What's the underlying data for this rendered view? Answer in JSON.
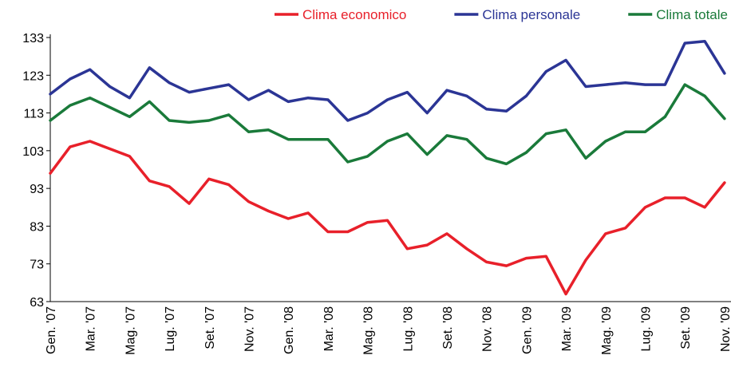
{
  "chart_data": {
    "type": "line",
    "categories": [
      "Gen. '07",
      null,
      "Mar. '07",
      null,
      "Mag. '07",
      null,
      "Lug. '07",
      null,
      "Set. '07",
      null,
      "Nov. '07",
      null,
      "Gen. '08",
      null,
      "Mar. '08",
      null,
      "Mag. '08",
      null,
      "Lug. '08",
      null,
      "Set. '08",
      null,
      "Nov. '08",
      null,
      "Gen. '09",
      null,
      "Mar. '09",
      null,
      "Mag. '09",
      null,
      "Lug. '09",
      null,
      "Set. '09",
      null,
      "Nov. '09"
    ],
    "series": [
      {
        "name": "Clima economico",
        "color": "#e8202a",
        "values": [
          97,
          104,
          105.5,
          103.5,
          101.5,
          95,
          93.5,
          89,
          95.5,
          94,
          89.5,
          87,
          85,
          86.5,
          81.5,
          81.5,
          84,
          84.5,
          77,
          78,
          81,
          77,
          73.5,
          72.5,
          74.5,
          75,
          65,
          74,
          81,
          82.5,
          88,
          90.5,
          90.5,
          88,
          94.5
        ]
      },
      {
        "name": "Clima personale",
        "color": "#2b3595",
        "values": [
          118,
          122,
          124.5,
          120,
          117,
          125,
          121,
          118.5,
          119.5,
          120.5,
          116.5,
          119,
          116,
          117,
          116.5,
          111,
          113,
          116.5,
          118.5,
          113,
          119,
          117.5,
          114,
          113.5,
          117.5,
          124,
          127,
          120,
          120.5,
          121,
          120.5,
          120.5,
          131.5,
          132,
          123.5
        ]
      },
      {
        "name": "Clima totale",
        "color": "#1a7a3a",
        "values": [
          111,
          115,
          117,
          114.5,
          112,
          116,
          111,
          110.5,
          111,
          112.5,
          108,
          108.5,
          106,
          106,
          106,
          100,
          101.5,
          105.5,
          107.5,
          102,
          107,
          106,
          101,
          99.5,
          102.5,
          107.5,
          108.5,
          101,
          105.5,
          108,
          108,
          112,
          120.5,
          117.5,
          111.5
        ]
      }
    ],
    "ylim": [
      63,
      133
    ],
    "yticks": [
      63,
      73,
      83,
      93,
      103,
      113,
      123,
      133
    ],
    "legend": "top"
  }
}
